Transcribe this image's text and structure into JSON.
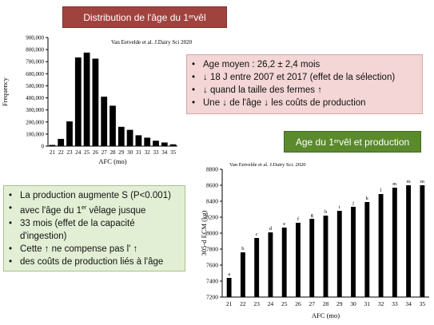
{
  "title1": {
    "text": "Distribution de l'âge du 1",
    "sup": "er",
    "tail": " vêl"
  },
  "title2": {
    "text": "Age du 1",
    "sup": "er",
    "tail": " vêl et production"
  },
  "pink_bullets": [
    "Age moyen : 26,2 ± 2,4 mois",
    "↓ 18 J entre 2007 et 2017 (effet de la sélection)",
    "↓ quand la taille des fermes ↑",
    "Une ↓ de l'âge  ↓ les coûts de production"
  ],
  "green_bullets": {
    "b1": "La production augmente S (P<0.001)",
    "b2_text": "avec l'âge du 1",
    "b2_sup": "er",
    "b2_tail": " vêlage jusque",
    "b3": "33 mois  (effet de la capacité",
    "b3_cont": "d'ingestion)",
    "b4": "Cette ↑  ne compense pas l' ↑",
    "b5": "des coûts de production liés à l'âge"
  },
  "bullet_symbol": "•",
  "chart_data": [
    {
      "type": "bar",
      "citation": "Van Eetvelde et al. J.Dairy Sci 2020",
      "categories": [
        "21",
        "22",
        "23",
        "24",
        "25",
        "26",
        "27",
        "28",
        "29",
        "30",
        "31",
        "32",
        "33",
        "34",
        "35"
      ],
      "values": [
        10000,
        60000,
        205000,
        735000,
        775000,
        725000,
        410000,
        335000,
        160000,
        135000,
        90000,
        70000,
        45000,
        30000,
        15000
      ],
      "xlabel": "AFC (mo)",
      "ylabel": "Frequency",
      "ylim": [
        0,
        900000
      ],
      "yticks": [
        "0",
        "100,000",
        "200,000",
        "300,000",
        "400,000",
        "500,000",
        "600,000",
        "700,000",
        "800,000",
        "900,000"
      ],
      "grid": false,
      "color": "#000000"
    },
    {
      "type": "bar",
      "citation": "Van Eetvelde et al. J.Dairy Sci. 2020",
      "categories": [
        "21",
        "22",
        "23",
        "24",
        "25",
        "26",
        "27",
        "28",
        "29",
        "30",
        "31",
        "32",
        "33",
        "34",
        "35"
      ],
      "values": [
        7440,
        7760,
        7940,
        8010,
        8070,
        8130,
        8180,
        8220,
        8280,
        8330,
        8390,
        8490,
        8570,
        8600,
        8600
      ],
      "letters": [
        "a",
        "b",
        "c",
        "d",
        "e",
        "f",
        "g",
        "h",
        "i",
        "j",
        "k",
        "l",
        "m",
        "m",
        "m"
      ],
      "xlabel": "AFC (mo)",
      "ylabel": "305-d ECM (kg)",
      "ylim": [
        7200,
        8800
      ],
      "yticks": [
        "7200",
        "7400",
        "7600",
        "7800",
        "8000",
        "8200",
        "8400",
        "8600",
        "8800"
      ],
      "grid": false,
      "color": "#000000"
    }
  ]
}
